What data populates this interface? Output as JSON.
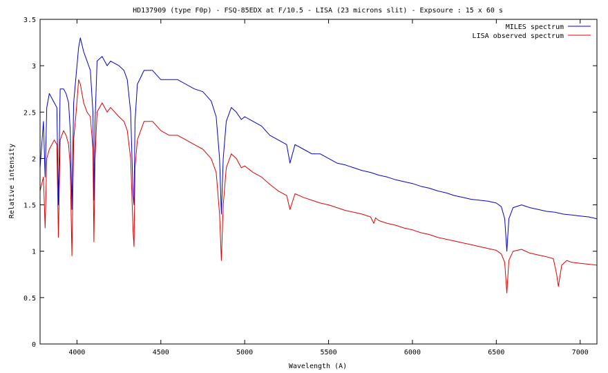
{
  "chart_data": {
    "type": "line",
    "title": "HD137909 (type F0p) - FSQ-85EDX at F/10.5 - LISA (23 microns slit) - Expsoure : 15  x 60 s",
    "xlabel": "Wavelength (A)",
    "ylabel": "Relative intensity",
    "xlim": [
      3780,
      7100
    ],
    "ylim": [
      0,
      3.5
    ],
    "x_ticks": [
      4000,
      4500,
      5000,
      5500,
      6000,
      6500,
      7000
    ],
    "y_ticks": [
      0,
      0.5,
      1,
      1.5,
      2,
      2.5,
      3,
      3.5
    ],
    "x_tick_labels": [
      "4000",
      "4500",
      "5000",
      "5500",
      "6000",
      "6500",
      "7000"
    ],
    "y_tick_labels": [
      "0",
      "0.5",
      "1",
      "1.5",
      "2",
      "2.5",
      "3",
      "3.5"
    ],
    "grid": false,
    "legend_position": "top-right",
    "series": [
      {
        "name": "MILES spectrum",
        "color": "#0000cc",
        "x": [
          3780,
          3800,
          3810,
          3820,
          3835,
          3850,
          3865,
          3880,
          3889,
          3900,
          3920,
          3935,
          3950,
          3960,
          3970,
          3980,
          3995,
          4010,
          4020,
          4040,
          4060,
          4080,
          4095,
          4101,
          4108,
          4120,
          4150,
          4180,
          4200,
          4250,
          4280,
          4300,
          4320,
          4335,
          4340,
          4346,
          4360,
          4400,
          4450,
          4500,
          4550,
          4600,
          4650,
          4700,
          4750,
          4800,
          4830,
          4850,
          4861,
          4872,
          4890,
          4920,
          4950,
          4980,
          5000,
          5050,
          5100,
          5150,
          5200,
          5250,
          5270,
          5300,
          5350,
          5400,
          5450,
          5500,
          5550,
          5600,
          5650,
          5700,
          5750,
          5800,
          5850,
          5900,
          5950,
          6000,
          6050,
          6100,
          6150,
          6200,
          6250,
          6300,
          6350,
          6400,
          6450,
          6500,
          6530,
          6550,
          6563,
          6575,
          6600,
          6650,
          6700,
          6750,
          6800,
          6850,
          6900,
          6950,
          7000,
          7050,
          7100
        ],
        "y": [
          1.9,
          2.4,
          1.8,
          2.55,
          2.7,
          2.65,
          2.6,
          2.55,
          1.5,
          2.75,
          2.75,
          2.7,
          2.6,
          2.3,
          1.45,
          2.6,
          2.9,
          3.2,
          3.3,
          3.15,
          3.05,
          2.95,
          2.5,
          1.55,
          2.4,
          3.05,
          3.1,
          3.0,
          3.05,
          3.0,
          2.95,
          2.85,
          2.5,
          1.6,
          1.5,
          2.4,
          2.8,
          2.95,
          2.95,
          2.85,
          2.85,
          2.85,
          2.8,
          2.75,
          2.72,
          2.62,
          2.45,
          2.0,
          1.4,
          2.0,
          2.4,
          2.55,
          2.5,
          2.42,
          2.45,
          2.4,
          2.35,
          2.25,
          2.2,
          2.15,
          1.95,
          2.15,
          2.1,
          2.05,
          2.05,
          2.0,
          1.95,
          1.93,
          1.9,
          1.87,
          1.85,
          1.82,
          1.8,
          1.77,
          1.75,
          1.73,
          1.7,
          1.68,
          1.65,
          1.63,
          1.6,
          1.58,
          1.56,
          1.55,
          1.54,
          1.52,
          1.48,
          1.35,
          1.0,
          1.35,
          1.47,
          1.5,
          1.47,
          1.45,
          1.43,
          1.42,
          1.4,
          1.39,
          1.38,
          1.37,
          1.35
        ]
      },
      {
        "name": "LISA observed spectrum",
        "color": "#dd0000",
        "x": [
          3780,
          3800,
          3810,
          3820,
          3835,
          3850,
          3865,
          3880,
          3889,
          3900,
          3920,
          3935,
          3950,
          3960,
          3970,
          3980,
          3995,
          4010,
          4020,
          4040,
          4060,
          4080,
          4095,
          4101,
          4108,
          4120,
          4150,
          4180,
          4200,
          4250,
          4280,
          4300,
          4320,
          4335,
          4340,
          4346,
          4360,
          4400,
          4450,
          4500,
          4550,
          4600,
          4650,
          4700,
          4750,
          4800,
          4830,
          4850,
          4861,
          4872,
          4890,
          4920,
          4950,
          4980,
          5000,
          5050,
          5100,
          5150,
          5200,
          5250,
          5270,
          5300,
          5350,
          5400,
          5450,
          5500,
          5550,
          5600,
          5650,
          5700,
          5750,
          5770,
          5780,
          5800,
          5850,
          5900,
          5950,
          6000,
          6050,
          6100,
          6150,
          6200,
          6250,
          6300,
          6350,
          6400,
          6450,
          6500,
          6530,
          6550,
          6563,
          6575,
          6600,
          6650,
          6700,
          6750,
          6800,
          6840,
          6860,
          6870,
          6890,
          6920,
          6950,
          7000,
          7050,
          7100
        ],
        "y": [
          1.65,
          1.8,
          1.25,
          2.0,
          2.1,
          2.15,
          2.2,
          2.15,
          1.15,
          2.2,
          2.3,
          2.25,
          2.15,
          1.9,
          0.95,
          2.2,
          2.5,
          2.85,
          2.8,
          2.6,
          2.5,
          2.45,
          2.1,
          1.1,
          2.0,
          2.5,
          2.6,
          2.5,
          2.55,
          2.45,
          2.4,
          2.3,
          2.0,
          1.2,
          1.05,
          1.9,
          2.2,
          2.4,
          2.4,
          2.3,
          2.25,
          2.25,
          2.2,
          2.15,
          2.1,
          2.0,
          1.85,
          1.4,
          0.9,
          1.5,
          1.9,
          2.05,
          2.0,
          1.9,
          1.92,
          1.85,
          1.8,
          1.72,
          1.65,
          1.6,
          1.45,
          1.62,
          1.58,
          1.55,
          1.52,
          1.5,
          1.47,
          1.44,
          1.42,
          1.4,
          1.37,
          1.3,
          1.36,
          1.33,
          1.3,
          1.28,
          1.25,
          1.23,
          1.2,
          1.18,
          1.15,
          1.13,
          1.11,
          1.09,
          1.07,
          1.05,
          1.03,
          1.01,
          0.97,
          0.88,
          0.55,
          0.9,
          1.0,
          1.02,
          0.98,
          0.96,
          0.94,
          0.92,
          0.75,
          0.62,
          0.85,
          0.9,
          0.88,
          0.87,
          0.86,
          0.85
        ]
      }
    ]
  }
}
